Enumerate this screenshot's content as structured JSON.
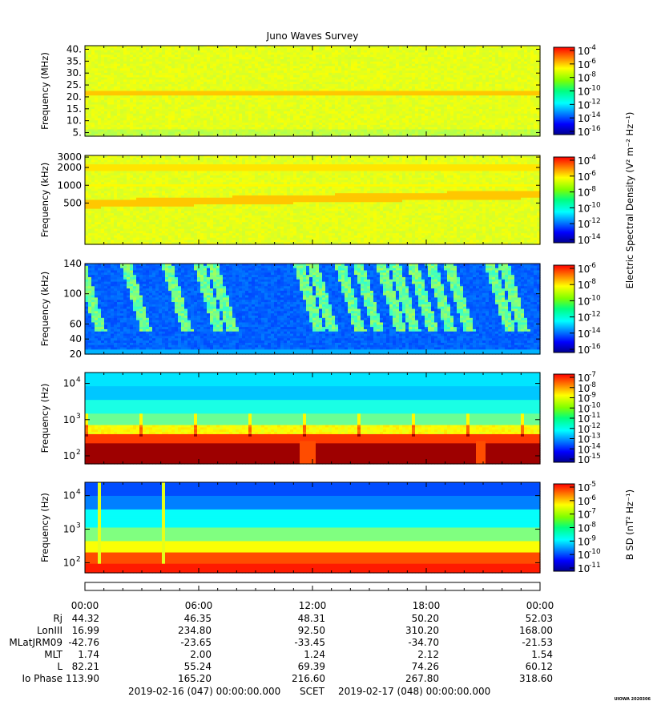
{
  "chart_data": {
    "type": "heatmap",
    "title": "Juno Waves Survey",
    "time_labels": [
      "00:00",
      "06:00",
      "12:00",
      "18:00",
      "00:00"
    ],
    "panels": [
      {
        "id": "p1",
        "ylabel": "Frequency (MHz)",
        "scale": "linear",
        "yticks": [
          "40.",
          "35.",
          "30.",
          "25.",
          "20.",
          "15.",
          "10.",
          "5."
        ],
        "ylim": [
          3.5,
          41.5
        ],
        "bands": [
          {
            "freq": 21.5,
            "level": 0.68
          }
        ],
        "base_level": 0.6
      },
      {
        "id": "p2",
        "ylabel": "Frequency (kHz)",
        "scale": "log",
        "yticks": [
          "3000",
          "2000",
          "1000",
          "500"
        ],
        "ylim": [
          100,
          3200
        ],
        "bands": [
          {
            "freq_start": 480,
            "freq_end": 700,
            "level": 0.68
          },
          {
            "freq": 2000,
            "level": 0.66
          }
        ],
        "base_level": 0.6
      },
      {
        "id": "p3",
        "ylabel": "Frequency (kHz)",
        "scale": "linear",
        "yticks": [
          "140",
          "100",
          "60",
          "40",
          "20"
        ],
        "ylim": [
          20,
          140
        ],
        "base_level": 0.25
      },
      {
        "id": "p4",
        "ylabel": "Frequency (Hz)",
        "scale": "log",
        "ytick_base": "10",
        "ytick_exponents": [
          "4",
          "3",
          "2"
        ],
        "ylim": [
          60,
          20000
        ],
        "base_level": 0.3
      },
      {
        "id": "p5",
        "ylabel": "Frequency (Hz)",
        "scale": "log",
        "ytick_base": "10",
        "ytick_exponents": [
          "4",
          "3",
          "2"
        ],
        "ylim": [
          50,
          25000
        ],
        "base_level": 0.3
      }
    ],
    "colorbars": [
      {
        "id": "cb1",
        "base": "10",
        "exponents": [
          "-4",
          "-6",
          "-8",
          "-10",
          "-12",
          "-14",
          "-16"
        ]
      },
      {
        "id": "cb2",
        "base": "10",
        "exponents": [
          "-4",
          "-6",
          "-8",
          "-10",
          "-12",
          "-14"
        ]
      },
      {
        "id": "cb3",
        "base": "10",
        "exponents": [
          "-6",
          "-8",
          "-10",
          "-12",
          "-14",
          "-16"
        ]
      },
      {
        "id": "cb4",
        "base": "10",
        "exponents": [
          "-7",
          "-8",
          "-9",
          "-10",
          "-11",
          "-12",
          "-13",
          "-14",
          "-15"
        ]
      },
      {
        "id": "cb5",
        "base": "10",
        "exponents": [
          "-5",
          "-6",
          "-7",
          "-8",
          "-9",
          "-10",
          "-11"
        ]
      }
    ],
    "colorbar_label_electric": "Electric Spectral Density (V² m⁻² Hz⁻¹)",
    "colorbar_label_b": "B SD (nT² Hz⁻¹)",
    "ephemeris": {
      "row_labels": [
        "Rj",
        "LonIII",
        "MLatJRM09",
        "MLT",
        "L",
        "Io Phase"
      ],
      "rows": [
        [
          "44.32",
          "46.35",
          "48.31",
          "50.20",
          "52.03"
        ],
        [
          "16.99",
          "234.80",
          "92.50",
          "310.20",
          "168.00"
        ],
        [
          "-42.76",
          "-23.65",
          "-33.45",
          "-34.70",
          "-21.53"
        ],
        [
          "1.74",
          "2.00",
          "1.24",
          "2.12",
          "1.54"
        ],
        [
          "82.21",
          "55.24",
          "69.39",
          "74.26",
          "60.12"
        ],
        [
          "113.90",
          "165.20",
          "216.60",
          "267.80",
          "318.60"
        ]
      ]
    },
    "footer": {
      "start": "2019-02-16 (047) 00:00:00.000",
      "scet": "SCET",
      "end": "2019-02-17 (048) 00:00:00.000"
    },
    "stamp": "UIOWA 2020306"
  }
}
